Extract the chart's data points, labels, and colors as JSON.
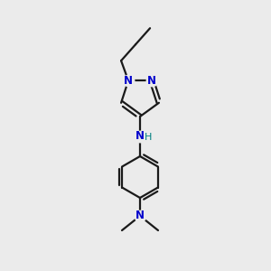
{
  "bg_color": "#ebebeb",
  "bond_color": "#1a1a1a",
  "N_color": "#0000cc",
  "NH_color": "#008080",
  "lw": 1.6,
  "figsize": [
    3.0,
    3.0
  ],
  "dpi": 100,
  "xlim": [
    0,
    300
  ],
  "ylim": [
    0,
    300
  ]
}
